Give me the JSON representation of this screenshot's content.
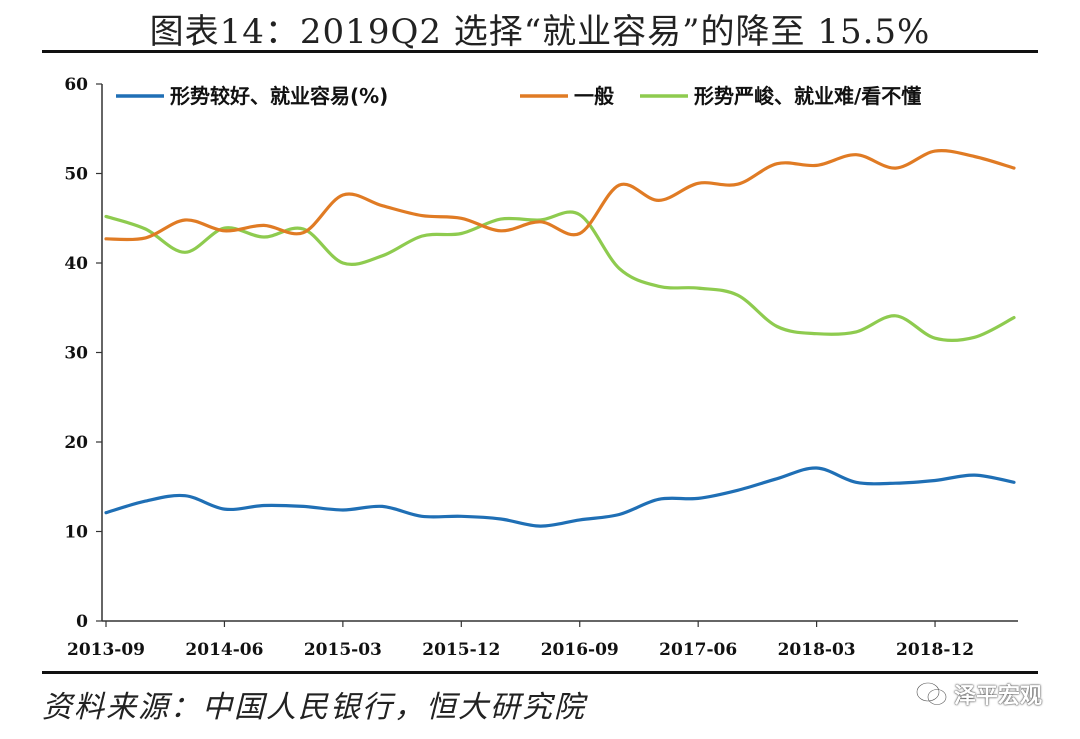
{
  "title": "图表14：2019Q2 选择“就业容易”的降至 15.5%",
  "source": "资料来源：中国人民银行，恒大研究院",
  "watermark": "泽平宏观",
  "chart_data": {
    "type": "line",
    "x": [
      "2013-09",
      "2013-12",
      "2014-03",
      "2014-06",
      "2014-09",
      "2014-12",
      "2015-03",
      "2015-06",
      "2015-09",
      "2015-12",
      "2016-03",
      "2016-06",
      "2016-09",
      "2016-12",
      "2017-03",
      "2017-06",
      "2017-09",
      "2017-12",
      "2018-03",
      "2018-06",
      "2018-09",
      "2018-12",
      "2019-03",
      "2019-06"
    ],
    "x_tick_labels": [
      "2013-09",
      "2014-06",
      "2015-03",
      "2015-12",
      "2016-09",
      "2017-06",
      "2018-03",
      "2018-12"
    ],
    "ylim": [
      0,
      60
    ],
    "y_ticks": [
      0,
      10,
      20,
      30,
      40,
      50,
      60
    ],
    "legend_position": "top",
    "series": [
      {
        "name": "形势较好、就业容易(%)",
        "color": "#1f6fb5",
        "values": [
          12.1,
          13.4,
          14.0,
          12.5,
          12.9,
          12.8,
          12.4,
          12.8,
          11.7,
          11.7,
          11.4,
          10.6,
          11.3,
          11.9,
          13.6,
          13.7,
          14.6,
          15.9,
          17.1,
          15.5,
          15.4,
          15.7,
          16.3,
          15.5
        ]
      },
      {
        "name": "一般",
        "color": "#e07b24",
        "values": [
          42.7,
          42.8,
          44.8,
          43.6,
          44.2,
          43.4,
          47.6,
          46.4,
          45.3,
          45.0,
          43.6,
          44.6,
          43.3,
          48.7,
          47.0,
          48.9,
          48.8,
          51.1,
          50.9,
          52.1,
          50.6,
          52.5,
          51.9,
          50.6
        ]
      },
      {
        "name": "形势严峻、就业难/看不懂",
        "color": "#8ecb4f",
        "values": [
          45.2,
          43.8,
          41.2,
          43.9,
          42.9,
          43.8,
          40.0,
          40.8,
          43.0,
          43.3,
          44.9,
          44.8,
          45.4,
          39.4,
          37.4,
          37.2,
          36.4,
          32.9,
          32.1,
          32.3,
          34.1,
          31.6,
          31.7,
          33.9
        ]
      }
    ]
  }
}
